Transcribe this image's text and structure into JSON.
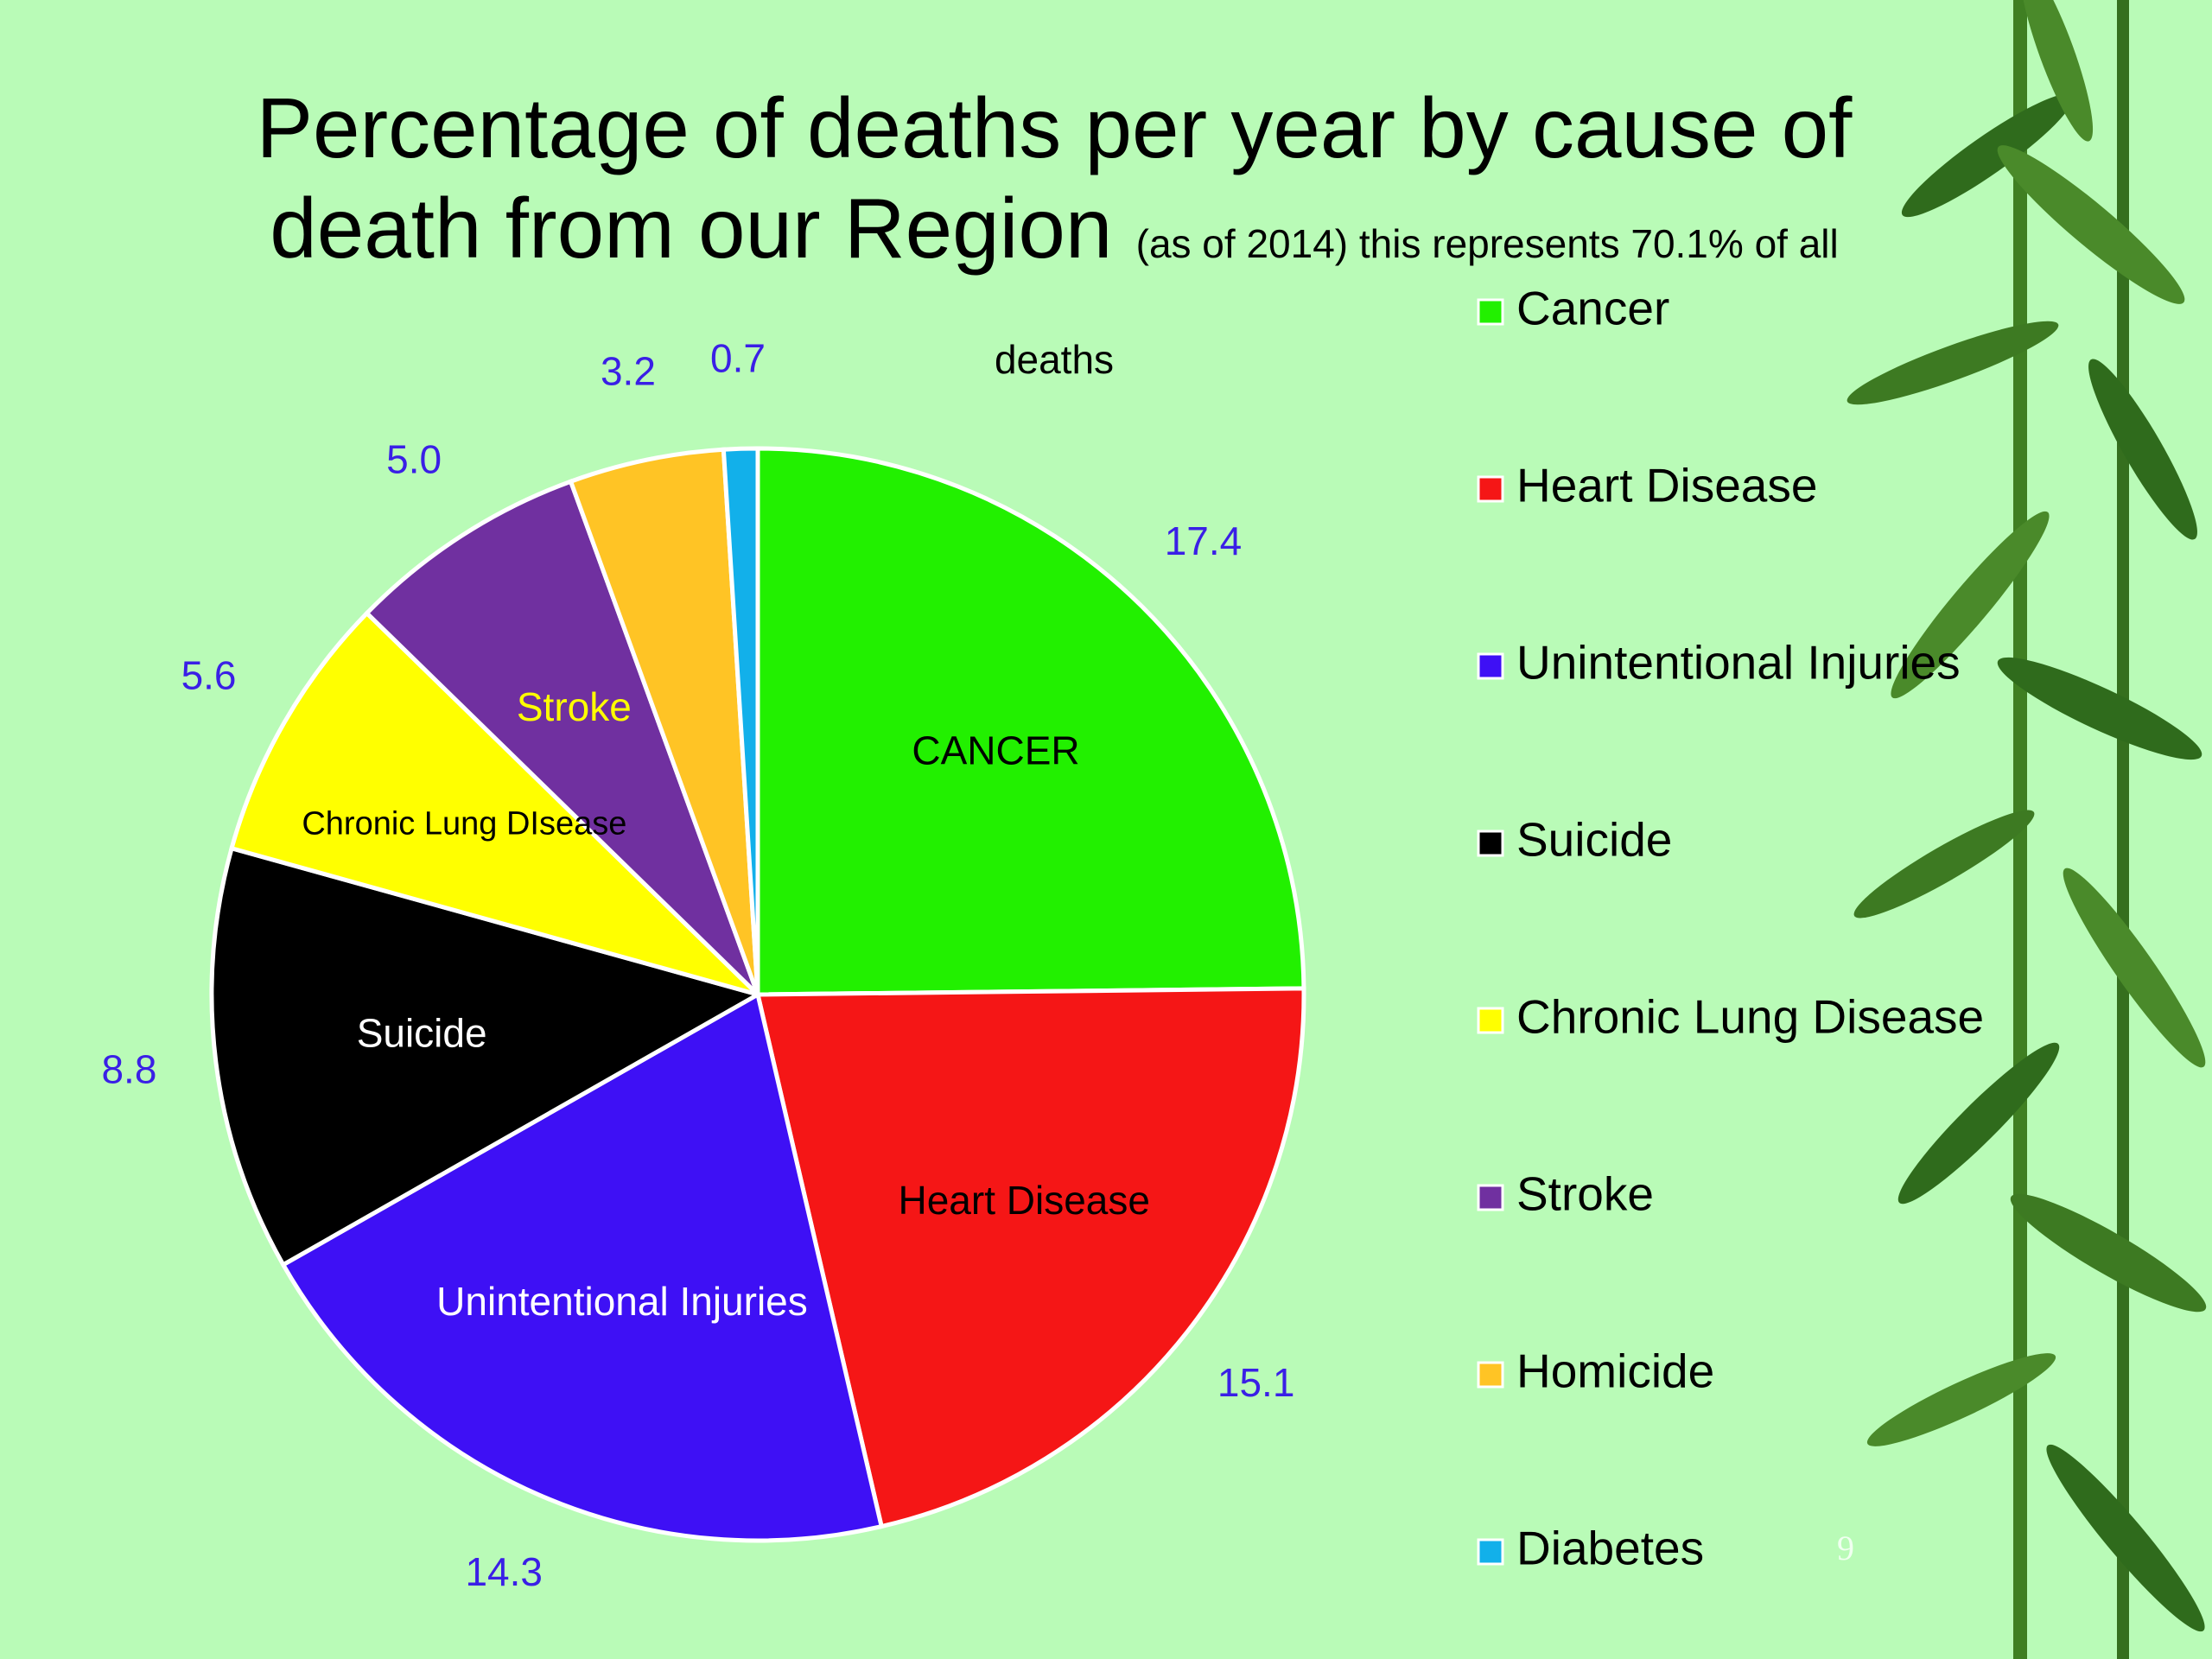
{
  "chart_data": {
    "type": "pie",
    "title": "Percentage of deaths per year by cause of death from our Region",
    "subtitle": "(as of 2014)  this represents 70.1% of all deaths",
    "categories": [
      "Cancer",
      "Heart Disease",
      "Unintentional Injuries",
      "Suicide",
      "Chronic Lung Disease",
      "Stroke",
      "Homicide",
      "Diabetes"
    ],
    "values": [
      17.4,
      15.1,
      14.3,
      8.8,
      5.6,
      5.0,
      3.2,
      0.7
    ],
    "value_labels": [
      "17.4",
      "15.1",
      "14.3",
      "8.8",
      "5.6",
      "5.0",
      "3.2",
      "0.7"
    ],
    "colors": [
      "#22f000",
      "#f51616",
      "#3e10f5",
      "#000000",
      "#ffff00",
      "#7030a0",
      "#ffc425",
      "#12b0ea"
    ],
    "slice_labels": [
      "CANCER",
      "Heart Disease",
      "Unintentional Injuries",
      "Suicide",
      "Chronic Lung DIsease",
      "Stroke",
      null,
      null
    ],
    "slice_label_colors": [
      "#000000",
      "#000000",
      "#ffffff",
      "#ffffff",
      "#000000",
      "#ffff00",
      null,
      null
    ],
    "value_label_color": "#3a1fe6",
    "legend": "right",
    "page_number": "9"
  }
}
